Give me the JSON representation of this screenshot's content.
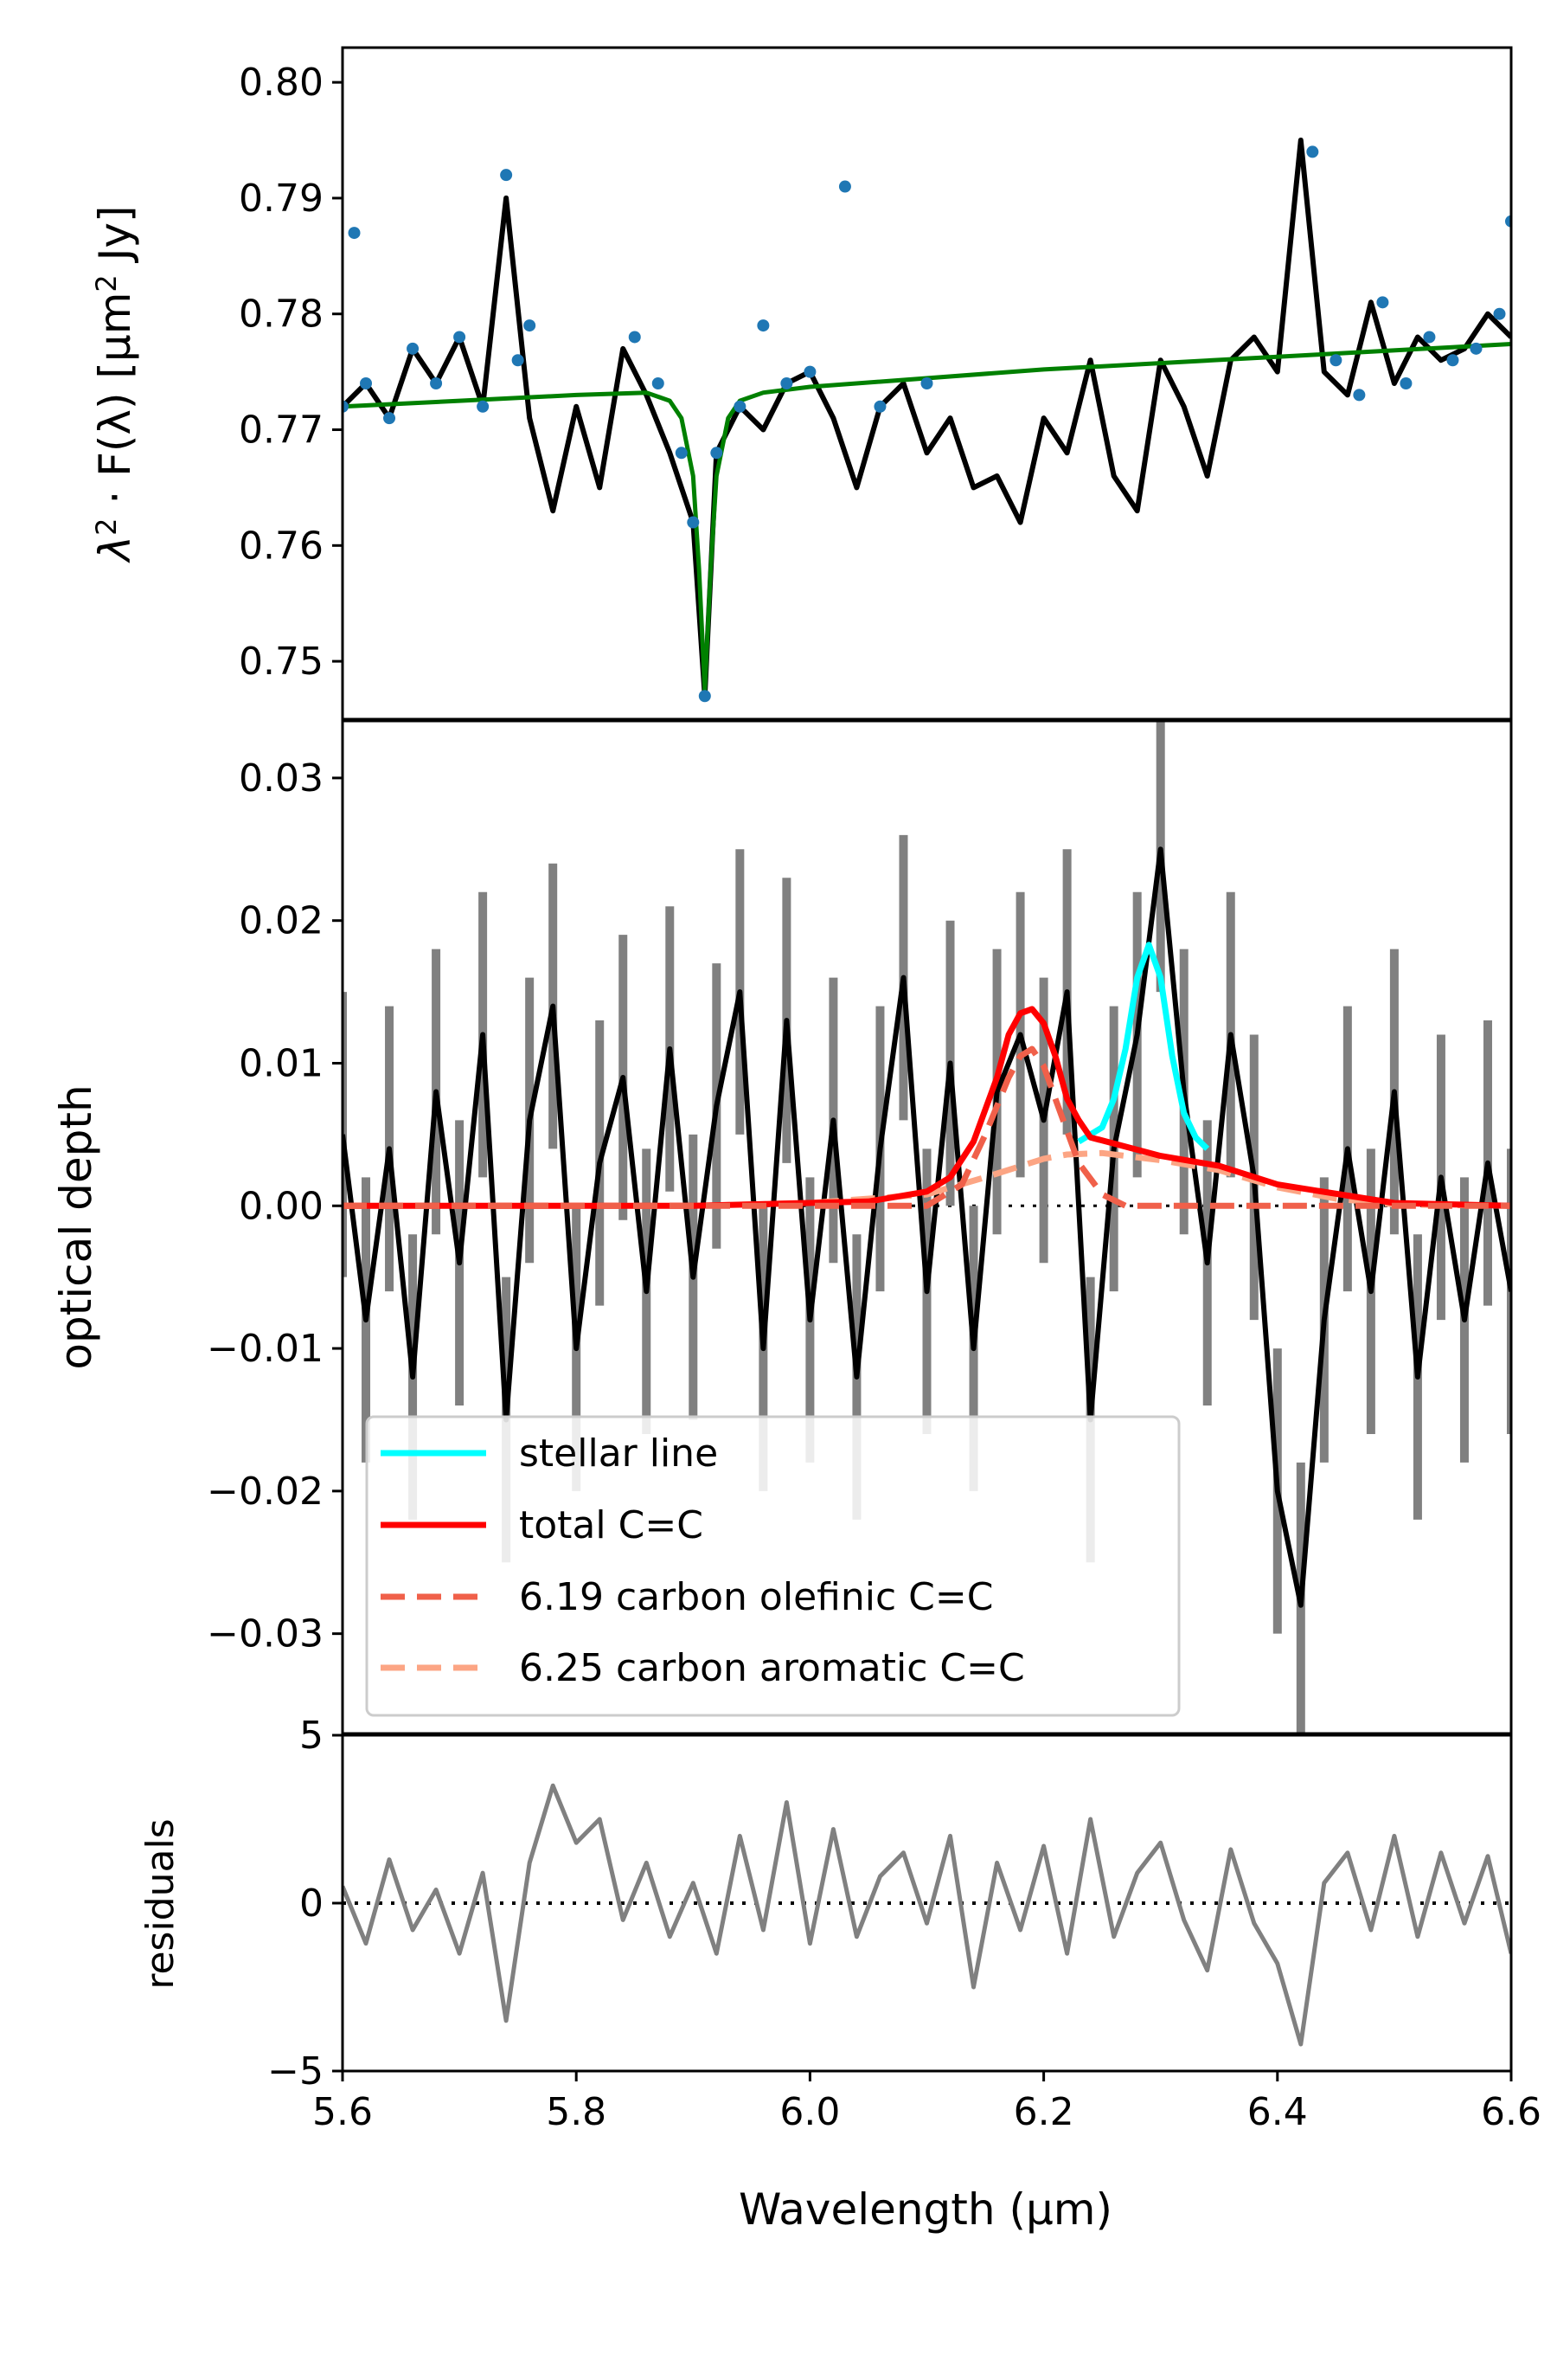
{
  "chart_data": [
    {
      "panel": "top",
      "type": "line",
      "ylabel_parts": [
        "λ",
        "2",
        " · F(λ) [μm",
        "2",
        " Jy]"
      ],
      "xlim": [
        5.6,
        6.6
      ],
      "ylim": [
        0.745,
        0.803
      ],
      "yticks": [
        0.75,
        0.76,
        0.77,
        0.78,
        0.79,
        0.8
      ],
      "ytick_labels": [
        "0.75",
        "0.76",
        "0.77",
        "0.78",
        "0.79",
        "0.80"
      ],
      "colors": {
        "spectrum": "#000000",
        "points": "#1f77b4",
        "fit": "#008000"
      },
      "series": [
        {
          "role": "spectrum",
          "x": [
            5.6,
            5.62,
            5.64,
            5.66,
            5.68,
            5.7,
            5.72,
            5.74,
            5.76,
            5.78,
            5.8,
            5.82,
            5.84,
            5.86,
            5.88,
            5.9,
            5.91,
            5.92,
            5.94,
            5.96,
            5.98,
            6.0,
            6.02,
            6.04,
            6.06,
            6.08,
            6.1,
            6.12,
            6.14,
            6.16,
            6.18,
            6.2,
            6.22,
            6.24,
            6.26,
            6.28,
            6.3,
            6.32,
            6.34,
            6.36,
            6.38,
            6.4,
            6.42,
            6.44,
            6.46,
            6.48,
            6.5,
            6.52,
            6.54,
            6.56,
            6.58,
            6.6
          ],
          "y": [
            0.772,
            0.774,
            0.771,
            0.777,
            0.774,
            0.778,
            0.772,
            0.79,
            0.771,
            0.763,
            0.772,
            0.765,
            0.777,
            0.773,
            0.768,
            0.762,
            0.747,
            0.768,
            0.772,
            0.77,
            0.774,
            0.775,
            0.771,
            0.765,
            0.772,
            0.774,
            0.768,
            0.771,
            0.765,
            0.766,
            0.762,
            0.771,
            0.768,
            0.776,
            0.766,
            0.763,
            0.776,
            0.772,
            0.766,
            0.776,
            0.778,
            0.775,
            0.795,
            0.775,
            0.773,
            0.781,
            0.774,
            0.778,
            0.776,
            0.777,
            0.78,
            0.778
          ]
        },
        {
          "role": "fit-points",
          "x": [
            5.6,
            5.61,
            5.62,
            5.64,
            5.66,
            5.68,
            5.7,
            5.72,
            5.74,
            5.75,
            5.76,
            5.85,
            5.87,
            5.89,
            5.9,
            5.91,
            5.92,
            5.94,
            5.96,
            5.98,
            6.0,
            6.03,
            6.06,
            6.1,
            6.43,
            6.45,
            6.47,
            6.49,
            6.51,
            6.53,
            6.55,
            6.57,
            6.59,
            6.6
          ],
          "y": [
            0.772,
            0.787,
            0.774,
            0.771,
            0.777,
            0.774,
            0.778,
            0.772,
            0.792,
            0.776,
            0.779,
            0.778,
            0.774,
            0.768,
            0.762,
            0.747,
            0.768,
            0.772,
            0.779,
            0.774,
            0.775,
            0.791,
            0.772,
            0.774,
            0.794,
            0.776,
            0.773,
            0.781,
            0.774,
            0.778,
            0.776,
            0.777,
            0.78,
            0.788
          ]
        },
        {
          "role": "fit",
          "x": [
            5.6,
            5.7,
            5.8,
            5.86,
            5.88,
            5.89,
            5.9,
            5.905,
            5.91,
            5.915,
            5.92,
            5.93,
            5.94,
            5.96,
            6.0,
            6.2,
            6.4,
            6.6
          ],
          "y": [
            0.772,
            0.7725,
            0.773,
            0.7732,
            0.7725,
            0.771,
            0.766,
            0.758,
            0.7475,
            0.758,
            0.766,
            0.771,
            0.7725,
            0.7732,
            0.7737,
            0.7752,
            0.7763,
            0.7774
          ]
        }
      ]
    },
    {
      "panel": "middle",
      "type": "line",
      "ylabel": "optical depth",
      "xlim": [
        5.6,
        6.6
      ],
      "ylim": [
        -0.037,
        0.034
      ],
      "yticks": [
        -0.03,
        -0.02,
        -0.01,
        0.0,
        0.01,
        0.02,
        0.03
      ],
      "ytick_labels": [
        "−0.03",
        "−0.02",
        "−0.01",
        "0.00",
        "0.01",
        "0.02",
        "0.03"
      ],
      "legend_location": "lower-left",
      "colors": {
        "stellar": "#00ffff",
        "total": "#ff0000",
        "olefinic": "#f0604a",
        "aromatic": "#fca584",
        "data": "#000000",
        "uncertainty": "#808080"
      },
      "legend": [
        {
          "label": "stellar line",
          "style": "solid",
          "color": "#00ffff"
        },
        {
          "label": "total C=C",
          "style": "solid",
          "color": "#ff0000"
        },
        {
          "label": "6.19 carbon olefinic C=C",
          "style": "dashed",
          "color": "#f0604a"
        },
        {
          "label": "6.25 carbon aromatic C=C",
          "style": "dashed",
          "color": "#fca584"
        }
      ],
      "series": [
        {
          "role": "data",
          "x": [
            5.6,
            5.62,
            5.64,
            5.66,
            5.68,
            5.7,
            5.72,
            5.74,
            5.76,
            5.78,
            5.8,
            5.82,
            5.84,
            5.86,
            5.88,
            5.9,
            5.92,
            5.94,
            5.96,
            5.98,
            6.0,
            6.02,
            6.04,
            6.06,
            6.08,
            6.1,
            6.12,
            6.14,
            6.16,
            6.18,
            6.2,
            6.22,
            6.24,
            6.26,
            6.28,
            6.3,
            6.32,
            6.34,
            6.36,
            6.38,
            6.4,
            6.42,
            6.44,
            6.46,
            6.48,
            6.5,
            6.52,
            6.54,
            6.56,
            6.58,
            6.6
          ],
          "y": [
            0.005,
            -0.008,
            0.004,
            -0.012,
            0.008,
            -0.004,
            0.012,
            -0.015,
            0.006,
            0.014,
            -0.01,
            0.003,
            0.009,
            -0.006,
            0.011,
            -0.005,
            0.007,
            0.015,
            -0.01,
            0.013,
            -0.008,
            0.006,
            -0.012,
            0.004,
            0.016,
            -0.006,
            0.01,
            -0.01,
            0.008,
            0.012,
            0.006,
            0.015,
            -0.015,
            0.004,
            0.012,
            0.025,
            0.008,
            -0.004,
            0.012,
            0.002,
            -0.02,
            -0.028,
            -0.008,
            0.004,
            -0.006,
            0.008,
            -0.012,
            0.002,
            -0.008,
            0.003,
            -0.006
          ]
        },
        {
          "name": "stellar line",
          "x": [
            6.23,
            6.25,
            6.26,
            6.27,
            6.28,
            6.29,
            6.3,
            6.31,
            6.32,
            6.33,
            6.34
          ],
          "y": [
            0.0045,
            0.0055,
            0.0075,
            0.011,
            0.016,
            0.0183,
            0.016,
            0.0105,
            0.0065,
            0.0048,
            0.004
          ]
        },
        {
          "name": "total C=C",
          "x": [
            5.6,
            5.9,
            6.05,
            6.1,
            6.12,
            6.14,
            6.16,
            6.17,
            6.18,
            6.19,
            6.2,
            6.21,
            6.22,
            6.23,
            6.24,
            6.3,
            6.35,
            6.4,
            6.5,
            6.6
          ],
          "y": [
            0,
            0,
            0.0003,
            0.001,
            0.002,
            0.0045,
            0.009,
            0.012,
            0.0135,
            0.0138,
            0.0128,
            0.0105,
            0.0075,
            0.006,
            0.0048,
            0.0035,
            0.0028,
            0.0015,
            0.0002,
            0
          ]
        },
        {
          "name": "6.19 carbon olefinic C=C",
          "x": [
            5.6,
            6.1,
            6.13,
            6.15,
            6.17,
            6.18,
            6.19,
            6.2,
            6.21,
            6.23,
            6.25,
            6.27,
            6.6
          ],
          "y": [
            0,
            0,
            0.0015,
            0.005,
            0.009,
            0.0105,
            0.011,
            0.0098,
            0.0075,
            0.003,
            0.0008,
            0,
            0
          ]
        },
        {
          "name": "6.25 carbon aromatic C=C",
          "x": [
            5.6,
            5.9,
            6.0,
            6.1,
            6.15,
            6.2,
            6.22,
            6.25,
            6.3,
            6.35,
            6.4,
            6.45,
            6.5,
            6.6
          ],
          "y": [
            0,
            0,
            0.0002,
            0.0008,
            0.002,
            0.0033,
            0.0036,
            0.0037,
            0.0032,
            0.0025,
            0.0013,
            0.0005,
            0.0001,
            0
          ]
        }
      ]
    },
    {
      "panel": "bottom",
      "type": "line",
      "ylabel": "residuals",
      "xlabel": "Wavelength (μm)",
      "xlim": [
        5.6,
        6.6
      ],
      "ylim": [
        -5,
        5
      ],
      "yticks": [
        -5,
        0,
        5
      ],
      "ytick_labels": [
        "−5",
        "0",
        "5"
      ],
      "xticks": [
        5.6,
        5.8,
        6.0,
        6.2,
        6.4,
        6.6
      ],
      "xtick_labels": [
        "5.6",
        "5.8",
        "6.0",
        "6.2",
        "6.4",
        "6.6"
      ],
      "colors": {
        "residuals": "#808080"
      },
      "series": [
        {
          "role": "residuals",
          "x": [
            5.6,
            5.62,
            5.64,
            5.66,
            5.68,
            5.7,
            5.72,
            5.74,
            5.76,
            5.78,
            5.8,
            5.82,
            5.84,
            5.86,
            5.88,
            5.9,
            5.92,
            5.94,
            5.96,
            5.98,
            6.0,
            6.02,
            6.04,
            6.06,
            6.08,
            6.1,
            6.12,
            6.14,
            6.16,
            6.18,
            6.2,
            6.22,
            6.24,
            6.26,
            6.28,
            6.3,
            6.32,
            6.34,
            6.36,
            6.38,
            6.4,
            6.42,
            6.44,
            6.46,
            6.48,
            6.5,
            6.52,
            6.54,
            6.56,
            6.58,
            6.6
          ],
          "y": [
            0.5,
            -1.2,
            1.3,
            -0.8,
            0.4,
            -1.5,
            0.9,
            -3.5,
            1.2,
            3.5,
            1.8,
            2.5,
            -0.5,
            1.2,
            -1.0,
            0.6,
            -1.5,
            2.0,
            -0.8,
            3.0,
            -1.2,
            2.2,
            -1.0,
            0.8,
            1.5,
            -0.6,
            2.0,
            -2.5,
            1.2,
            -0.8,
            1.7,
            -1.5,
            2.5,
            -1.0,
            0.9,
            1.8,
            -0.5,
            -2.0,
            1.6,
            -0.6,
            -1.8,
            -4.2,
            0.6,
            1.5,
            -0.8,
            2.0,
            -1.0,
            1.5,
            -0.6,
            1.4,
            -1.5
          ]
        }
      ]
    }
  ]
}
